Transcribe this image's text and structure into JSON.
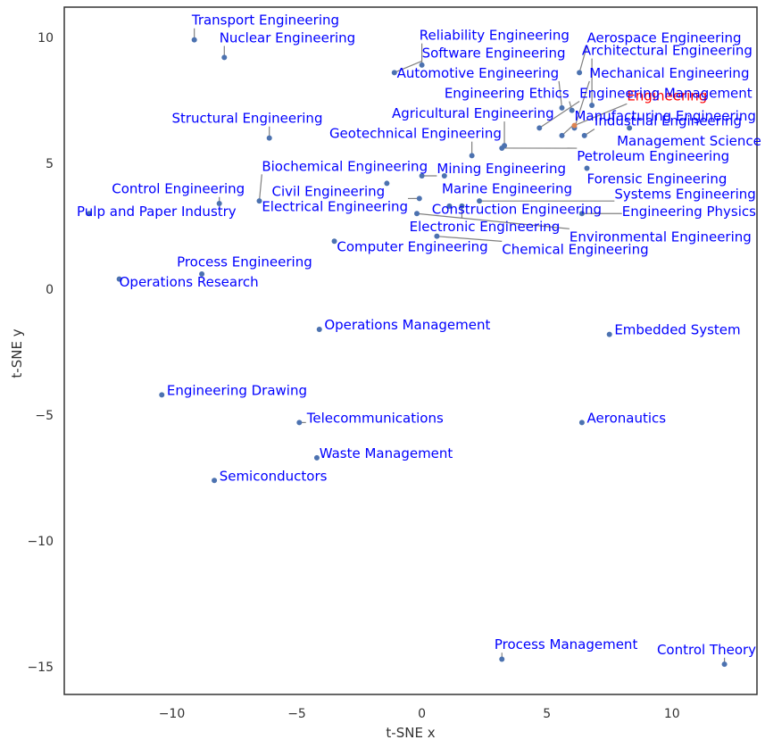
{
  "chart_data": {
    "type": "scatter",
    "xlabel": "t-SNE x",
    "ylabel": "t-SNE y",
    "xlim": [
      -14.3,
      13.4
    ],
    "ylim": [
      -16.1,
      11.2
    ],
    "xticks": [
      -10,
      -5,
      0,
      5,
      10
    ],
    "yticks": [
      -15,
      -10,
      -5,
      0,
      5,
      10
    ],
    "tick_labels_x": [
      "−10",
      "−5",
      "0",
      "5",
      "10"
    ],
    "tick_labels_y": [
      "−15",
      "−10",
      "−5",
      "0",
      "5",
      "10"
    ],
    "grid": false,
    "colors": {
      "point": "#4c72b0",
      "highlight_point": "#dd8452",
      "label": "#0000ff",
      "highlight_label": "#ff0000",
      "leader": "#808080"
    },
    "points": [
      {
        "label": "Transport Engineering",
        "x": -9.1,
        "y": 9.9,
        "lx": -9.2,
        "ly": 10.5
      },
      {
        "label": "Nuclear Engineering",
        "x": -7.9,
        "y": 9.2,
        "lx": -8.1,
        "ly": 9.8
      },
      {
        "label": "Reliability Engineering",
        "x": 0.0,
        "y": 8.9,
        "lx": -0.1,
        "ly": 9.9
      },
      {
        "label": "Software Engineering",
        "x": -1.1,
        "y": 8.6,
        "lx": 0.0,
        "ly": 9.2
      },
      {
        "label": "Aerospace Engineering",
        "x": 6.3,
        "y": 8.6,
        "lx": 6.6,
        "ly": 9.8
      },
      {
        "label": "Architectural Engineering",
        "x": 6.8,
        "y": 7.3,
        "lx": 6.4,
        "ly": 9.3
      },
      {
        "label": "Automotive Engineering",
        "x": 5.6,
        "y": 7.2,
        "lx": -1.0,
        "ly": 8.4
      },
      {
        "label": "Mechanical Engineering",
        "x": 6.1,
        "y": 6.4,
        "lx": 6.7,
        "ly": 8.4
      },
      {
        "label": "Engineering",
        "x": 6.1,
        "y": 6.5,
        "lx": 8.2,
        "ly": 7.5,
        "highlight": true
      },
      {
        "label": "Engineering Ethics",
        "x": 6.0,
        "y": 7.1,
        "lx": 0.9,
        "ly": 7.6
      },
      {
        "label": "Engineering Management",
        "x": 4.7,
        "y": 6.4,
        "lx": 6.3,
        "ly": 7.6
      },
      {
        "label": "Manufacturing Engineering",
        "x": 5.6,
        "y": 6.1,
        "lx": 6.1,
        "ly": 6.7
      },
      {
        "label": "Industrial Engineering",
        "x": 6.5,
        "y": 6.1,
        "lx": 6.9,
        "ly": 6.5
      },
      {
        "label": "Management Science",
        "x": 8.3,
        "y": 6.4,
        "lx": 7.8,
        "ly": 5.7
      },
      {
        "label": "Structural Engineering",
        "x": -6.1,
        "y": 6.0,
        "lx": -10.0,
        "ly": 6.6
      },
      {
        "label": "Agricultural Engineering",
        "x": 3.3,
        "y": 5.7,
        "lx": -1.2,
        "ly": 6.8
      },
      {
        "label": "Geotechnical Engineering",
        "x": 2.0,
        "y": 5.3,
        "lx": -3.7,
        "ly": 6.0
      },
      {
        "label": "Petroleum Engineering",
        "x": 3.2,
        "y": 5.6,
        "lx": 6.2,
        "ly": 5.1
      },
      {
        "label": "Mining Engineering",
        "x": 0.0,
        "y": 4.5,
        "lx": 0.6,
        "ly": 4.6
      },
      {
        "label": "Forensic Engineering",
        "x": 6.6,
        "y": 4.8,
        "lx": 6.6,
        "ly": 4.2
      },
      {
        "label": "Biochemical Engineering",
        "x": -6.5,
        "y": 3.5,
        "lx": -6.4,
        "ly": 4.7
      },
      {
        "label": "Marine Engineering",
        "x": 0.9,
        "y": 4.5,
        "lx": 0.8,
        "ly": 3.8
      },
      {
        "label": "Systems Engineering",
        "x": 2.3,
        "y": 3.5,
        "lx": 7.7,
        "ly": 3.6
      },
      {
        "label": "Control Engineering",
        "x": -8.1,
        "y": 3.4,
        "lx": -12.4,
        "ly": 3.8
      },
      {
        "label": "Civil Engineering",
        "x": -1.4,
        "y": 4.2,
        "lx": -6.0,
        "ly": 3.7
      },
      {
        "label": "Construction Engineering",
        "x": 1.1,
        "y": 3.3,
        "lx": 0.4,
        "ly": 3.0
      },
      {
        "label": "Engineering Physics",
        "x": 6.4,
        "y": 3.0,
        "lx": 8.0,
        "ly": 2.9
      },
      {
        "label": "Pulp and Paper Industry",
        "x": -13.3,
        "y": 3.0,
        "lx": -13.8,
        "ly": 2.9
      },
      {
        "label": "Electrical Engineering",
        "x": -0.1,
        "y": 3.6,
        "lx": -6.4,
        "ly": 3.1
      },
      {
        "label": "Electronic Engineering",
        "x": 1.6,
        "y": 3.3,
        "lx": -0.5,
        "ly": 2.3
      },
      {
        "label": "Environmental Engineering",
        "x": -0.2,
        "y": 3.0,
        "lx": 5.9,
        "ly": 1.9
      },
      {
        "label": "Computer Engineering",
        "x": -3.5,
        "y": 1.9,
        "lx": -3.4,
        "ly": 1.5
      },
      {
        "label": "Chemical Engineering",
        "x": 0.6,
        "y": 2.1,
        "lx": 3.2,
        "ly": 1.4
      },
      {
        "label": "Process Engineering",
        "x": -8.8,
        "y": 0.6,
        "lx": -9.8,
        "ly": 0.9
      },
      {
        "label": "Operations Research",
        "x": -12.1,
        "y": 0.4,
        "lx": -12.1,
        "ly": 0.1
      },
      {
        "label": "Operations Management",
        "x": -4.1,
        "y": -1.6,
        "lx": -3.9,
        "ly": -1.6
      },
      {
        "label": "Embedded System",
        "x": 7.5,
        "y": -1.8,
        "lx": 7.7,
        "ly": -1.8
      },
      {
        "label": "Engineering Drawing",
        "x": -10.4,
        "y": -4.2,
        "lx": -10.2,
        "ly": -4.2
      },
      {
        "label": "Telecommunications",
        "x": -4.9,
        "y": -5.3,
        "lx": -4.6,
        "ly": -5.3
      },
      {
        "label": "Aeronautics",
        "x": 6.4,
        "y": -5.3,
        "lx": 6.6,
        "ly": -5.3
      },
      {
        "label": "Waste Management",
        "x": -4.2,
        "y": -6.7,
        "lx": -4.1,
        "ly": -6.7
      },
      {
        "label": "Semiconductors",
        "x": -8.3,
        "y": -7.6,
        "lx": -8.1,
        "ly": -7.6
      },
      {
        "label": "Process Management",
        "x": 3.2,
        "y": -14.7,
        "lx": 2.9,
        "ly": -14.3
      },
      {
        "label": "Control Theory",
        "x": 12.1,
        "y": -14.9,
        "lx": 9.4,
        "ly": -14.5
      }
    ]
  }
}
